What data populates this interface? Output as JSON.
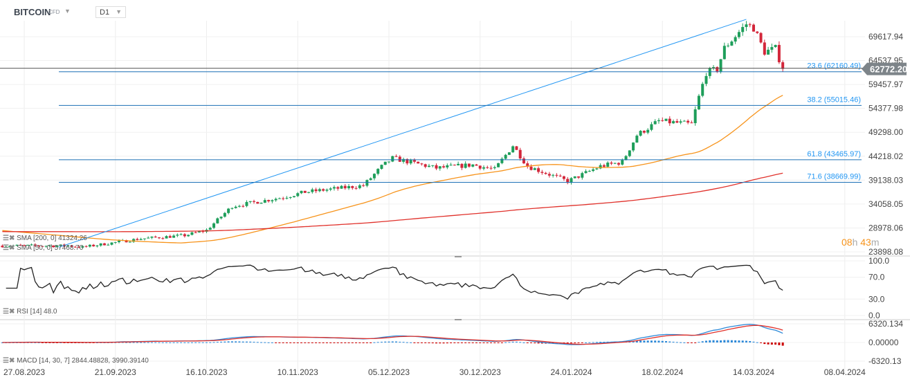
{
  "header": {
    "symbol": "BITCOIN",
    "instrument_type": "CFD",
    "timeframe": "D1"
  },
  "countdown": {
    "hours": "08",
    "h_unit": "h",
    "minutes": "43",
    "m_unit": "m"
  },
  "colors": {
    "up": "#1e9e5a",
    "down": "#d3263a",
    "sma50": "#f7931a",
    "sma200": "#e0302a",
    "trendline": "#2196f3",
    "fib": "#1a6fb5",
    "macd": "#2d89d8",
    "signal": "#e0302a"
  },
  "chart_data": [
    {
      "type": "candlestick",
      "name": "price",
      "x_ticks": [
        "27.08.2023",
        "21.09.2023",
        "16.10.2023",
        "10.11.2023",
        "05.12.2023",
        "30.12.2023",
        "24.01.2024",
        "18.02.2024",
        "14.03.2024",
        "08.04.2024"
      ],
      "y_ticks": [
        "69617.94",
        "64537.95",
        "59457.97",
        "54377.98",
        "49298.00",
        "44218.02",
        "39138.03",
        "34058.05",
        "28978.06",
        "23898.08"
      ],
      "ylim": [
        23898.08,
        72000
      ],
      "last_price": "62772.20",
      "price_path": [
        [
          "21.08.2023",
          25200
        ],
        [
          "08.09.2023",
          25200
        ],
        [
          "12.09.2023",
          24900
        ],
        [
          "28.09.2023",
          26700
        ],
        [
          "10.10.2023",
          27400
        ],
        [
          "16.10.2023",
          28500
        ],
        [
          "23.10.2023",
          33600
        ],
        [
          "06.11.2023",
          35500
        ],
        [
          "12.11.2023",
          36600
        ],
        [
          "28.11.2023",
          38000
        ],
        [
          "03.12.2023",
          42000
        ],
        [
          "06.12.2023",
          43800
        ],
        [
          "18.12.2023",
          41700
        ],
        [
          "28.12.2023",
          42400
        ],
        [
          "03.01.2024",
          41400
        ],
        [
          "08.01.2024",
          46500
        ],
        [
          "12.01.2024",
          42100
        ],
        [
          "23.01.2024",
          38900
        ],
        [
          "01.02.2024",
          42100
        ],
        [
          "07.02.2024",
          43000
        ],
        [
          "11.02.2024",
          48700
        ],
        [
          "17.02.2024",
          51700
        ],
        [
          "26.02.2024",
          51000
        ],
        [
          "28.02.2024",
          56800
        ],
        [
          "01.03.2024",
          62000
        ],
        [
          "04.03.2024",
          62700
        ],
        [
          "06.03.2024",
          67200
        ],
        [
          "12.03.2024",
          72300
        ],
        [
          "14.03.2024",
          71500
        ],
        [
          "17.03.2024",
          66400
        ],
        [
          "20.03.2024",
          67100
        ],
        [
          "22.03.2024",
          62772
        ]
      ],
      "fib_levels": [
        {
          "label": "23.6 (62160.49)",
          "value": 62160.49
        },
        {
          "label": "38.2 (55015.46)",
          "value": 55015.46
        },
        {
          "label": "61.8 (43465.97)",
          "value": 43465.97
        },
        {
          "label": "71.6 (38669.99)",
          "value": 38669.99
        }
      ],
      "indicators": [
        {
          "label": "SMA [200, 0] 41324.26"
        },
        {
          "label": "SMA [50, 0] 57468.70"
        }
      ]
    },
    {
      "type": "line",
      "name": "RSI",
      "label": "RSI [14] 48.0",
      "y_ticks": [
        "100.0",
        "70.0",
        "30.0",
        "0.0"
      ],
      "ylim": [
        0,
        100
      ]
    },
    {
      "type": "bar+line",
      "name": "MACD",
      "label": "MACD [14, 30, 7] 2844.48828, 3990.39140",
      "y_ticks": [
        "6320.134",
        "0.00000",
        "-6320.13"
      ],
      "ylim": [
        -6320.13,
        6320.134
      ]
    }
  ]
}
